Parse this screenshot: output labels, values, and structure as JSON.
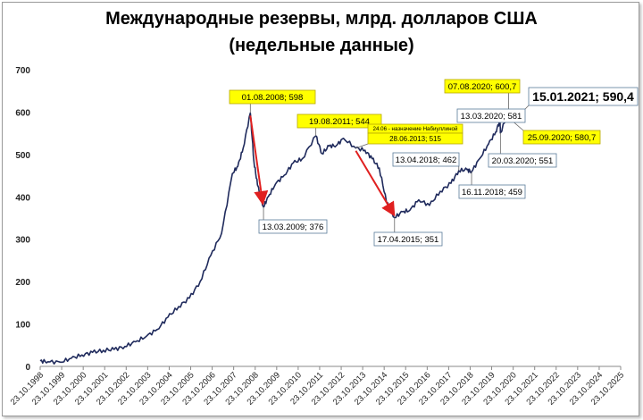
{
  "chart_data": {
    "type": "line",
    "title": "Международные резервы, млрд. долларов США",
    "subtitle": "(недельные данные)",
    "ylim": [
      0,
      700
    ],
    "yticks": [
      0,
      100,
      200,
      300,
      400,
      500,
      600,
      700
    ],
    "xlim": [
      "1998-10-23",
      "2025-10-23"
    ],
    "xticks": [
      "23.10.1998",
      "23.10.1999",
      "23.10.2000",
      "23.10.2001",
      "23.10.2002",
      "23.10.2003",
      "23.10.2004",
      "23.10.2005",
      "23.10.2006",
      "23.10.2007",
      "23.10.2008",
      "23.10.2009",
      "23.10.2010",
      "23.10.2011",
      "23.10.2012",
      "23.10.2013",
      "23.10.2014",
      "23.10.2015",
      "23.10.2016",
      "23.10.2017",
      "23.10.2018",
      "23.10.2019",
      "23.10.2020",
      "23.10.2021",
      "23.10.2022",
      "23.10.2023",
      "23.10.2024",
      "23.10.2025"
    ],
    "grid": false,
    "line_color": "#1f2a5c",
    "series": [
      {
        "x": [
          "1998-10-23",
          "1999-03-01",
          "1999-10-01",
          "2000-04-01",
          "2000-10-01",
          "2001-04-01",
          "2001-10-01",
          "2002-04-01",
          "2002-10-01",
          "2003-04-01",
          "2003-10-01",
          "2004-04-01",
          "2004-10-01",
          "2005-04-01",
          "2005-10-01",
          "2006-04-01",
          "2006-10-01",
          "2007-04-01",
          "2007-10-01",
          "2008-01-01",
          "2008-04-01",
          "2008-08-01",
          "2008-10-01",
          "2008-12-01",
          "2009-03-13",
          "2009-06-01",
          "2009-10-01",
          "2010-03-01",
          "2010-08-01",
          "2011-01-01",
          "2011-08-19",
          "2011-12-01",
          "2012-04-01",
          "2012-08-01",
          "2012-12-01",
          "2013-06-28",
          "2013-12-01",
          "2014-04-01",
          "2014-08-01",
          "2014-12-01",
          "2015-04-17",
          "2015-09-01",
          "2016-01-01",
          "2016-06-01",
          "2016-12-01",
          "2017-06-01",
          "2017-12-01",
          "2018-04-13",
          "2018-09-01",
          "2018-11-16",
          "2019-04-01",
          "2019-09-01",
          "2020-01-01",
          "2020-03-13",
          "2020-03-20",
          "2020-08-07",
          "2020-09-25",
          "2021-01-15"
        ],
        "y": [
          13,
          11,
          10,
          19,
          27,
          33,
          38,
          40,
          47,
          58,
          71,
          87,
          116,
          141,
          161,
          200,
          262,
          314,
          455,
          472,
          515,
          598,
          484,
          428,
          376,
          400,
          430,
          451,
          480,
          490,
          544,
          502,
          520,
          521,
          538,
          515,
          510,
          490,
          468,
          388,
          351,
          365,
          368,
          393,
          380,
          413,
          432,
          462,
          464,
          459,
          490,
          525,
          553,
          581,
          551,
          600.7,
          580.7,
          590.4
        ]
      }
    ],
    "annotations": [
      {
        "label": "01.08.2008; 598",
        "highlight": true
      },
      {
        "label": "13.03.2009; 376",
        "highlight": false
      },
      {
        "label": "19.08.2011; 544",
        "highlight": true
      },
      {
        "label": "24.06 - назначение Набиуллиной",
        "highlight": true
      },
      {
        "label": "28.06.2013; 515",
        "highlight": true
      },
      {
        "label": "17.04.2015; 351",
        "highlight": false
      },
      {
        "label": "13.04.2018; 462",
        "highlight": false
      },
      {
        "label": "16.11.2018; 459",
        "highlight": false
      },
      {
        "label": "13.03.2020; 581",
        "highlight": false
      },
      {
        "label": "20.03.2020; 551",
        "highlight": false
      },
      {
        "label": "07.08.2020; 600,7",
        "highlight": true
      },
      {
        "label": "25.09.2020; 580,7",
        "highlight": true
      },
      {
        "label": "15.01.2021; 590,4",
        "highlight": false
      }
    ]
  }
}
